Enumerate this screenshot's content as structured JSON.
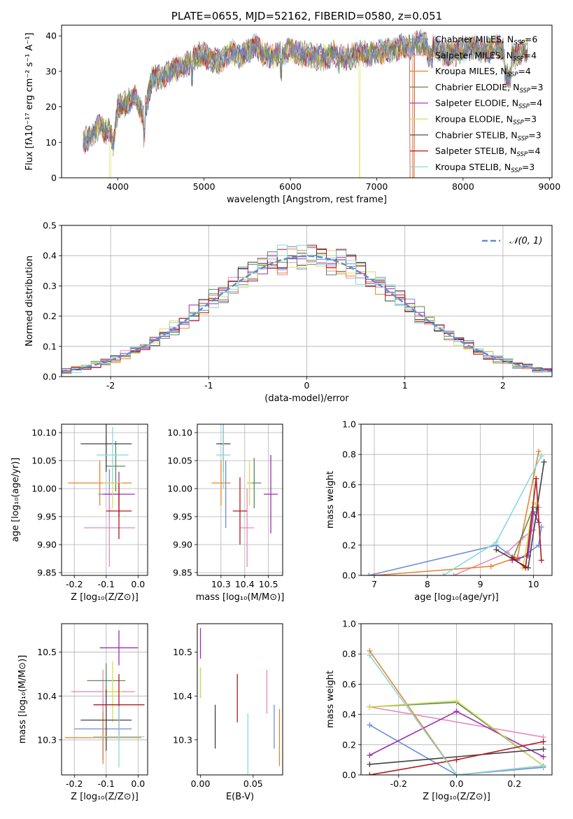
{
  "colors": {
    "series": [
      "#6b8ed6",
      "#e58bbd",
      "#e8832a",
      "#5a8a5a",
      "#9b2fae",
      "#d8dd5a",
      "#404040",
      "#b01818",
      "#88d8dc"
    ],
    "normal": "#5b8dd6",
    "grid": "#b0b0b0"
  },
  "chart_data": [
    {
      "id": "spectrum",
      "type": "line",
      "title": "PLATE=0655, MJD=52162, FIBERID=0580, z=0.051",
      "xlabel": "wavelength [Angstrom, rest frame]",
      "ylabel": "Flux [fλ10⁻¹⁷ erg cm⁻² s⁻¹ A⁻¹]",
      "xlim": [
        3350,
        9030
      ],
      "ylim": [
        0,
        43
      ],
      "xticks": [
        4000,
        5000,
        6000,
        7000,
        8000,
        9000
      ],
      "yticks": [
        0,
        10,
        20,
        30,
        40
      ],
      "legend_position": "upper right",
      "legend": [
        "Chabrier MILES, N_SSP=6",
        "Salpeter MILES, N_SSP=4",
        "Kroupa MILES, N_SSP=4",
        "Chabrier ELODIE, N_SSP=3",
        "Salpeter ELODIE, N_SSP=4",
        "Kroupa ELODIE, N_SSP=3",
        "Chabrier STELIB, N_SSP=3",
        "Salpeter STELIB, N_SSP=4",
        "Kroupa STELIB, N_SSP=3"
      ],
      "spectrum_x": [
        3600,
        3700,
        3800,
        3850,
        3900,
        3950,
        4000,
        4100,
        4200,
        4300,
        4400,
        4500,
        4600,
        4700,
        4800,
        4900,
        5000,
        5100,
        5200,
        5300,
        5400,
        5500,
        5600,
        5700,
        5800,
        5900,
        6000,
        6100,
        6200,
        6300,
        6400,
        6500,
        6600,
        6700,
        6800,
        6900,
        7000,
        7100,
        7200,
        7300,
        7400,
        7500,
        7600,
        7700,
        7800,
        7900,
        8000,
        8100,
        8200,
        8300,
        8400,
        8500,
        8600,
        8700
      ],
      "spectrum_y": [
        10,
        12,
        15,
        13,
        14,
        9,
        20,
        21,
        23,
        17,
        28,
        28,
        30,
        31,
        32,
        34,
        35,
        33,
        33,
        36,
        34,
        36,
        37,
        35,
        34,
        35,
        36,
        35,
        35,
        34,
        34,
        35,
        34,
        34,
        35,
        35,
        35,
        36,
        36,
        37,
        37,
        38,
        38,
        36,
        35,
        35,
        36,
        37,
        36,
        36,
        37,
        35,
        34,
        36
      ],
      "dropouts": [
        [
          3910,
          0
        ],
        [
          6800,
          0
        ],
        [
          7420,
          0
        ]
      ]
    },
    {
      "id": "residuals",
      "type": "line",
      "xlabel": "(data-model)/error",
      "ylabel": "Normed distribution",
      "xlim": [
        -2.5,
        2.5
      ],
      "ylim": [
        0,
        0.5
      ],
      "xticks": [
        -2,
        -1,
        0,
        1,
        2
      ],
      "yticks": [
        0.0,
        0.1,
        0.2,
        0.3,
        0.4,
        0.5
      ],
      "legend": [
        "𝒩(0, 1)"
      ],
      "legend_position": "upper right",
      "grid": true
    },
    {
      "id": "age_vs_Z",
      "type": "scatter",
      "xlabel": "Z [log₁₀(Z/Z⊙)]",
      "ylabel": "age  [log₁₀(age/yr)]",
      "xlim": [
        -0.24,
        0.03
      ],
      "ylim": [
        9.845,
        10.115
      ],
      "xticks": [
        -0.2,
        -0.1,
        0.0
      ],
      "yticks": [
        9.85,
        9.9,
        9.95,
        10.0,
        10.05,
        10.1
      ],
      "grid": true,
      "points": [
        {
          "x": -0.09,
          "y": 9.99,
          "xerr": 0.035,
          "yerr": 0.045
        },
        {
          "x": -0.09,
          "y": 9.93,
          "xerr": 0.08,
          "yerr": 0.07
        },
        {
          "x": -0.12,
          "y": 10.01,
          "xerr": 0.1,
          "yerr": 0.04
        },
        {
          "x": -0.07,
          "y": 10.04,
          "xerr": 0.03,
          "yerr": 0.045
        },
        {
          "x": -0.06,
          "y": 9.99,
          "xerr": 0.05,
          "yerr": 0.04
        },
        {
          "x": -0.08,
          "y": 10.01,
          "xerr": 0.03,
          "yerr": 0.045
        },
        {
          "x": -0.1,
          "y": 10.08,
          "xerr": 0.08,
          "yerr": 0.05
        },
        {
          "x": -0.06,
          "y": 9.96,
          "xerr": 0.04,
          "yerr": 0.05
        },
        {
          "x": -0.08,
          "y": 10.06,
          "xerr": 0.05,
          "yerr": 0.05
        }
      ]
    },
    {
      "id": "age_vs_mass",
      "type": "scatter",
      "xlabel": "mass [log₁₀(M/M⊙)]",
      "xlim": [
        10.2,
        10.56
      ],
      "ylim": [
        9.845,
        10.115
      ],
      "xticks": [
        10.3,
        10.4,
        10.5
      ],
      "yticks": [
        9.85,
        9.9,
        9.95,
        10.0,
        10.05,
        10.1
      ],
      "grid": true,
      "points": [
        {
          "x": 10.32,
          "y": 9.99,
          "xerr": 0.0,
          "yerr": 0.06
        },
        {
          "x": 10.41,
          "y": 9.93,
          "xerr": 0.03,
          "yerr": 0.07
        },
        {
          "x": 10.3,
          "y": 10.01,
          "xerr": 0.04,
          "yerr": 0.04
        },
        {
          "x": 10.44,
          "y": 10.01,
          "xerr": 0.03,
          "yerr": 0.045
        },
        {
          "x": 10.51,
          "y": 9.99,
          "xerr": 0.03,
          "yerr": 0.07
        },
        {
          "x": 10.42,
          "y": 10.01,
          "xerr": 0.01,
          "yerr": 0.04
        },
        {
          "x": 10.31,
          "y": 10.08,
          "xerr": 0.03,
          "yerr": 0.05
        },
        {
          "x": 10.38,
          "y": 9.96,
          "xerr": 0.03,
          "yerr": 0.06
        },
        {
          "x": 10.31,
          "y": 10.06,
          "xerr": 0.03,
          "yerr": 0.06
        }
      ]
    },
    {
      "id": "mass_weight_vs_age",
      "type": "line",
      "xlabel": "age  [log₁₀(age/yr)]",
      "ylabel": "mass weight",
      "xlim": [
        6.75,
        10.35
      ],
      "ylim": [
        0,
        1.0
      ],
      "xticks": [
        7,
        8,
        9,
        10
      ],
      "yticks": [
        0.0,
        0.2,
        0.4,
        0.6,
        0.8,
        1.0
      ],
      "grid": true,
      "series": [
        {
          "x": [
            6.9,
            9.3,
            9.7,
            10.1,
            10.15
          ],
          "y": [
            0.0,
            0.2,
            0.1,
            0.2,
            0.32
          ]
        },
        {
          "x": [
            8.5,
            9.5,
            9.8,
            10.0,
            10.1
          ],
          "y": [
            0.0,
            0.15,
            0.25,
            0.3,
            0.45
          ]
        },
        {
          "x": [
            7.0,
            9.2,
            9.7,
            10.1
          ],
          "y": [
            0.0,
            0.06,
            0.12,
            0.82
          ]
        },
        {
          "x": [
            9.6,
            10.0,
            10.05
          ],
          "y": [
            0.1,
            0.45,
            0.45
          ]
        },
        {
          "x": [
            9.6,
            9.9,
            10.0,
            10.1
          ],
          "y": [
            0.1,
            0.13,
            0.42,
            0.35
          ]
        },
        {
          "x": [
            9.8,
            10.0,
            10.05
          ],
          "y": [
            0.05,
            0.48,
            0.47
          ]
        },
        {
          "x": [
            9.3,
            9.9,
            10.2
          ],
          "y": [
            0.17,
            0.05,
            0.75
          ]
        },
        {
          "x": [
            9.6,
            9.85,
            10.05,
            10.15
          ],
          "y": [
            0.12,
            0.05,
            0.64,
            0.1
          ]
        },
        {
          "x": [
            8.3,
            9.3,
            10.15
          ],
          "y": [
            0.0,
            0.22,
            0.79
          ]
        }
      ]
    },
    {
      "id": "mass_vs_Z",
      "type": "scatter",
      "xlabel": "Z [log₁₀(Z/Z⊙)]",
      "ylabel": "mass [log₁₀(M/M⊙)]",
      "xlim": [
        -0.24,
        0.03
      ],
      "ylim": [
        10.22,
        10.565
      ],
      "xticks": [
        -0.2,
        -0.1,
        0.0
      ],
      "yticks": [
        10.3,
        10.4,
        10.5
      ],
      "grid": true,
      "points": [
        {
          "x": -0.11,
          "y": 10.325,
          "xerr": 0.09,
          "yerr": 0.07
        },
        {
          "x": -0.11,
          "y": 10.41,
          "xerr": 0.1,
          "yerr": 0.05
        },
        {
          "x": -0.11,
          "y": 10.305,
          "xerr": 0.12,
          "yerr": 0.06
        },
        {
          "x": -0.1,
          "y": 10.435,
          "xerr": 0.06,
          "yerr": 0.04
        },
        {
          "x": -0.06,
          "y": 10.51,
          "xerr": 0.06,
          "yerr": 0.04
        },
        {
          "x": -0.08,
          "y": 10.41,
          "xerr": 0.03,
          "yerr": 0.07
        },
        {
          "x": -0.1,
          "y": 10.345,
          "xerr": 0.08,
          "yerr": 0.07
        },
        {
          "x": -0.06,
          "y": 10.38,
          "xerr": 0.08,
          "yerr": 0.07
        },
        {
          "x": -0.06,
          "y": 10.307,
          "xerr": 0.08,
          "yerr": 0.07
        }
      ]
    },
    {
      "id": "mass_vs_ebv",
      "type": "scatter",
      "xlabel": "E(B-V)",
      "xlim": [
        -0.003,
        0.078
      ],
      "ylim": [
        10.22,
        10.565
      ],
      "xticks": [
        0.0,
        0.05
      ],
      "yticks": [
        10.3,
        10.4,
        10.5
      ],
      "grid": false,
      "points": [
        {
          "x": 0.07,
          "y": 10.33,
          "xerr": 0,
          "yerr": 0.05
        },
        {
          "x": 0.063,
          "y": 10.41,
          "xerr": 0,
          "yerr": 0.05
        },
        {
          "x": 0.075,
          "y": 10.305,
          "xerr": 0,
          "yerr": 0.065
        },
        {
          "x": 0.0,
          "y": 10.43,
          "xerr": 0,
          "yerr": 0.035
        },
        {
          "x": 0.0,
          "y": 10.52,
          "xerr": 0,
          "yerr": 0.035
        },
        {
          "x": 0.0,
          "y": 10.43,
          "xerr": 0,
          "yerr": 0.035
        },
        {
          "x": 0.014,
          "y": 10.33,
          "xerr": 0,
          "yerr": 0.05
        },
        {
          "x": 0.035,
          "y": 10.395,
          "xerr": 0,
          "yerr": 0.055
        },
        {
          "x": 0.045,
          "y": 10.29,
          "xerr": 0,
          "yerr": 0.07
        }
      ]
    },
    {
      "id": "mass_weight_vs_Z",
      "type": "line",
      "xlabel": "Z [log₁₀(Z/Z⊙)]",
      "ylabel": "mass weight",
      "xlim": [
        -0.33,
        0.33
      ],
      "ylim": [
        0,
        1.0
      ],
      "xticks": [
        -0.2,
        0.0,
        0.2
      ],
      "yticks": [
        0.0,
        0.2,
        0.4,
        0.6,
        0.8,
        1.0
      ],
      "grid": true,
      "series": [
        {
          "x": [
            -0.3,
            0.0,
            0.3
          ],
          "y": [
            0.33,
            0.0,
            0.05
          ]
        },
        {
          "x": [
            -0.3,
            0.3
          ],
          "y": [
            0.45,
            0.25
          ]
        },
        {
          "x": [
            -0.3,
            0.0,
            0.3
          ],
          "y": [
            0.82,
            0.0,
            0.06
          ]
        },
        {
          "x": [
            -0.3,
            0.0,
            0.3
          ],
          "y": [
            0.45,
            0.48,
            0.06
          ]
        },
        {
          "x": [
            -0.3,
            0.0,
            0.3
          ],
          "y": [
            0.13,
            0.42,
            0.12
          ]
        },
        {
          "x": [
            -0.3,
            0.0,
            0.3
          ],
          "y": [
            0.45,
            0.49,
            0.06
          ]
        },
        {
          "x": [
            -0.3,
            0.3
          ],
          "y": [
            0.07,
            0.17
          ]
        },
        {
          "x": [
            -0.3,
            0.0,
            0.3
          ],
          "y": [
            0.0,
            0.1,
            0.22
          ]
        },
        {
          "x": [
            -0.3,
            0.0,
            0.3
          ],
          "y": [
            0.79,
            0.0,
            0.06
          ]
        }
      ]
    }
  ]
}
